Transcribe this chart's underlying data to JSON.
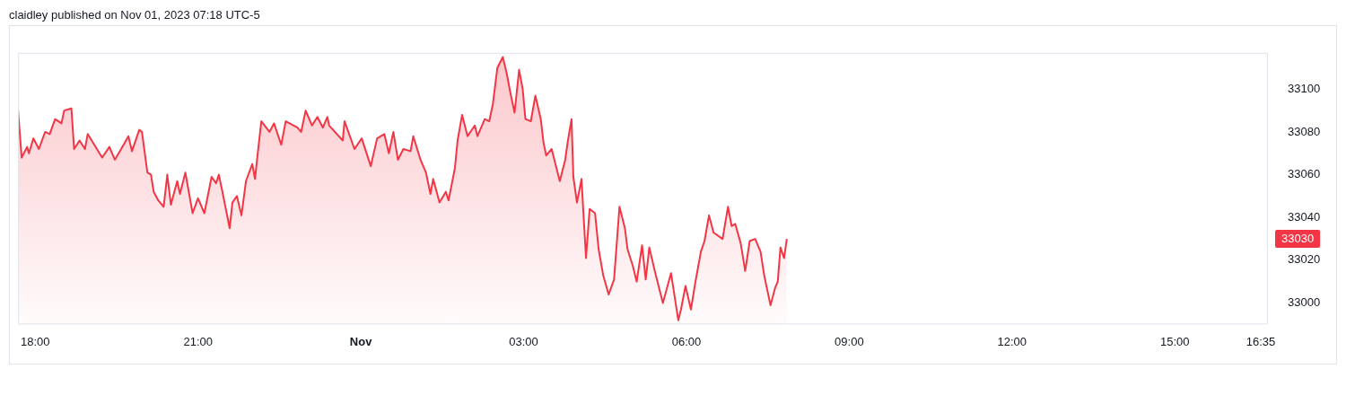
{
  "chart_data": {
    "type": "area",
    "title": "claidley published on Nov 01, 2023 07:18 UTC-5",
    "x": [
      "2023-10-31T17:41",
      "2023-10-31T17:45",
      "2023-10-31T17:51",
      "2023-10-31T17:53",
      "2023-10-31T17:58",
      "2023-10-31T18:04",
      "2023-10-31T18:11",
      "2023-10-31T18:16",
      "2023-10-31T18:22",
      "2023-10-31T18:29",
      "2023-10-31T18:32",
      "2023-10-31T18:40",
      "2023-10-31T18:43",
      "2023-10-31T18:49",
      "2023-10-31T18:55",
      "2023-10-31T18:58",
      "2023-10-31T19:14",
      "2023-10-31T19:22",
      "2023-10-31T19:28",
      "2023-10-31T19:35",
      "2023-10-31T19:43",
      "2023-10-31T19:47",
      "2023-10-31T19:55",
      "2023-10-31T19:58",
      "2023-10-31T20:04",
      "2023-10-31T20:08",
      "2023-10-31T20:11",
      "2023-10-31T20:16",
      "2023-10-31T20:22",
      "2023-10-31T20:26",
      "2023-10-31T20:30",
      "2023-10-31T20:37",
      "2023-10-31T20:40",
      "2023-10-31T20:46",
      "2023-10-31T20:54",
      "2023-10-31T21:00",
      "2023-10-31T21:07",
      "2023-10-31T21:15",
      "2023-10-31T21:20",
      "2023-10-31T21:23",
      "2023-10-31T21:27",
      "2023-10-31T21:35",
      "2023-10-31T21:38",
      "2023-10-31T21:43",
      "2023-10-31T21:48",
      "2023-10-31T21:53",
      "2023-10-31T22:00",
      "2023-10-31T22:03",
      "2023-10-31T22:06",
      "2023-10-31T22:10",
      "2023-10-31T22:19",
      "2023-10-31T22:24",
      "2023-10-31T22:32",
      "2023-10-31T22:37",
      "2023-10-31T22:50",
      "2023-10-31T22:54",
      "2023-10-31T22:59",
      "2023-10-31T23:06",
      "2023-10-31T23:12",
      "2023-10-31T23:18",
      "2023-10-31T23:23",
      "2023-10-31T23:25",
      "2023-10-31T23:40",
      "2023-10-31T23:42",
      "2023-10-31T23:53",
      "2023-11-01T00:01",
      "2023-11-01T00:11",
      "2023-11-01T00:18",
      "2023-11-01T00:26",
      "2023-11-01T00:31",
      "2023-11-01T00:36",
      "2023-11-01T00:41",
      "2023-11-01T00:47",
      "2023-11-01T00:55",
      "2023-11-01T00:58",
      "2023-11-01T01:06",
      "2023-11-01T01:12",
      "2023-11-01T01:17",
      "2023-11-01T01:20",
      "2023-11-01T01:27",
      "2023-11-01T01:34",
      "2023-11-01T01:37",
      "2023-11-01T01:44",
      "2023-11-01T01:47",
      "2023-11-01T01:52",
      "2023-11-01T01:58",
      "2023-11-01T02:06",
      "2023-11-01T02:09",
      "2023-11-01T02:17",
      "2023-11-01T02:22",
      "2023-11-01T02:26",
      "2023-11-01T02:31",
      "2023-11-01T02:37",
      "2023-11-01T02:41",
      "2023-11-01T02:46",
      "2023-11-01T02:50",
      "2023-11-01T02:55",
      "2023-11-01T02:59",
      "2023-11-01T03:02",
      "2023-11-01T03:08",
      "2023-11-01T03:13",
      "2023-11-01T03:19",
      "2023-11-01T03:22",
      "2023-11-01T03:25",
      "2023-11-01T03:31",
      "2023-11-01T03:40",
      "2023-11-01T03:46",
      "2023-11-01T03:49",
      "2023-11-01T03:53",
      "2023-11-01T03:55",
      "2023-11-01T03:59",
      "2023-11-01T04:04",
      "2023-11-01T04:09",
      "2023-11-01T04:13",
      "2023-11-01T04:19",
      "2023-11-01T04:23",
      "2023-11-01T04:28",
      "2023-11-01T04:34",
      "2023-11-01T04:40",
      "2023-11-01T04:46",
      "2023-11-01T04:52",
      "2023-11-01T04:55",
      "2023-11-01T05:01",
      "2023-11-01T05:05",
      "2023-11-01T05:11",
      "2023-11-01T05:15",
      "2023-11-01T05:19",
      "2023-11-01T05:25",
      "2023-11-01T05:34",
      "2023-11-01T05:43",
      "2023-11-01T05:51",
      "2023-11-01T05:54",
      "2023-11-01T05:59",
      "2023-11-01T06:05",
      "2023-11-01T06:10",
      "2023-11-01T06:16",
      "2023-11-01T06:20",
      "2023-11-01T06:25",
      "2023-11-01T06:30",
      "2023-11-01T06:40",
      "2023-11-01T06:46",
      "2023-11-01T06:50",
      "2023-11-01T06:54",
      "2023-11-01T07:00",
      "2023-11-01T07:05",
      "2023-11-01T07:10",
      "2023-11-01T07:16",
      "2023-11-01T07:22",
      "2023-11-01T07:26",
      "2023-11-01T07:33",
      "2023-11-01T07:38",
      "2023-11-01T07:41",
      "2023-11-01T07:44",
      "2023-11-01T07:48",
      "2023-11-01T07:51"
    ],
    "series": [
      {
        "color": "#f23645",
        "values": [
          33090,
          33068,
          33073,
          33070,
          33077,
          33072,
          33080,
          33079,
          33086,
          33084,
          33090,
          33091,
          33072,
          33076,
          33072,
          33079,
          33068,
          33073,
          33067,
          33072,
          33078,
          33071,
          33081,
          33080,
          33061,
          33060,
          33052,
          33048,
          33045,
          33060,
          33046,
          33057,
          33051,
          33061,
          33042,
          33049,
          33042,
          33059,
          33056,
          33060,
          33052,
          33035,
          33047,
          33050,
          33041,
          33057,
          33065,
          33058,
          33070,
          33085,
          33080,
          33084,
          33074,
          33085,
          33082,
          33080,
          33090,
          33083,
          33087,
          33082,
          33087,
          33083,
          33076,
          33085,
          33072,
          33077,
          33064,
          33077,
          33079,
          33070,
          33080,
          33067,
          33072,
          33071,
          33078,
          33067,
          33061,
          33051,
          33058,
          33047,
          33052,
          33048,
          33063,
          33076,
          33088,
          33078,
          33083,
          33078,
          33086,
          33085,
          33093,
          33110,
          33115,
          33108,
          33097,
          33089,
          33109,
          33100,
          33086,
          33085,
          33097,
          33086,
          33075,
          33069,
          33072,
          33057,
          33067,
          33076,
          33086,
          33059,
          33047,
          33058,
          33021,
          33044,
          33042,
          33025,
          33013,
          33004,
          33011,
          33045,
          33035,
          33025,
          33017,
          33010,
          33027,
          33011,
          33026,
          33015,
          33000,
          33014,
          32992,
          32997,
          33008,
          32997,
          33010,
          33024,
          33029,
          33041,
          33033,
          33030,
          33045,
          33036,
          33037,
          33028,
          33015,
          33029,
          33030,
          33024,
          33013,
          32999,
          33007,
          33010,
          33026,
          33021,
          33030
        ]
      }
    ],
    "xlim": [
      "2023-10-31T17:41",
      "2023-11-01T16:43"
    ],
    "xticks": [
      {
        "value": "2023-10-31T18:00",
        "label": "18:00"
      },
      {
        "value": "2023-10-31T21:00",
        "label": "21:00"
      },
      {
        "value": "2023-11-01",
        "label": "Nov"
      },
      {
        "value": "2023-11-01T03:00",
        "label": "03:00"
      },
      {
        "value": "2023-11-01T06:00",
        "label": "06:00"
      },
      {
        "value": "2023-11-01T09:00",
        "label": "09:00"
      },
      {
        "value": "2023-11-01T12:00",
        "label": "12:00"
      },
      {
        "value": "2023-11-01T15:00",
        "label": "15:00"
      },
      {
        "value": "2023-11-01T16:35",
        "label": "16:35"
      }
    ],
    "ylim": [
      32990,
      33117
    ],
    "yticks": [
      33000,
      33020,
      33040,
      33060,
      33080,
      33100
    ],
    "annotations": [
      "33030"
    ],
    "grid": false,
    "legend": false
  }
}
